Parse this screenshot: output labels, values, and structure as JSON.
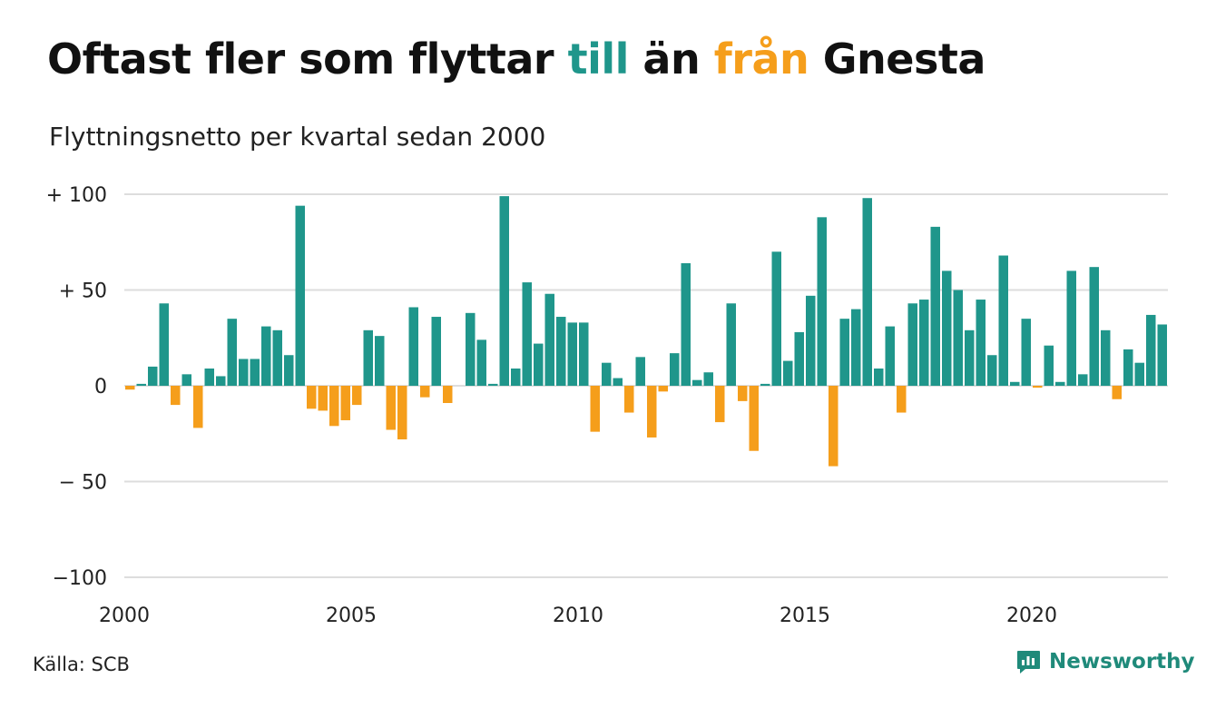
{
  "header": {
    "title_parts": [
      "Oftast fler som flyttar ",
      "till",
      " än ",
      "från",
      " Gnesta"
    ],
    "subtitle": "Flyttningsnetto per kvartal sedan 2000"
  },
  "footer": {
    "source": "Källa: SCB",
    "logo_text": "Newsworthy",
    "logo_icon": "bar-chart-logo-icon"
  },
  "colors": {
    "positive": "#1f968b",
    "negative": "#f59e1b",
    "grid": "#dddddd",
    "logo": "#1f8a7a"
  },
  "chart_data": {
    "type": "bar",
    "x_start": 2000,
    "periods_per_year": 4,
    "y_ticks": [
      100,
      50,
      0,
      -50,
      -100
    ],
    "y_tick_labels": [
      "+ 100",
      "+  50",
      "0",
      "− 50",
      "−100"
    ],
    "x_ticks": [
      2000,
      2005,
      2010,
      2015,
      2020
    ],
    "ylim": [
      -100,
      100
    ],
    "grid": true,
    "values": [
      -2,
      1,
      10,
      43,
      -10,
      6,
      -22,
      9,
      5,
      35,
      14,
      14,
      31,
      29,
      16,
      94,
      -12,
      -13,
      -21,
      -18,
      -10,
      29,
      26,
      -23,
      -28,
      41,
      -6,
      36,
      -9,
      0,
      38,
      24,
      1,
      99,
      9,
      54,
      22,
      48,
      36,
      33,
      33,
      -24,
      12,
      4,
      -14,
      15,
      -27,
      -3,
      17,
      64,
      3,
      7,
      -19,
      43,
      -8,
      -34,
      1,
      70,
      13,
      28,
      47,
      88,
      -42,
      35,
      40,
      98,
      9,
      31,
      -14,
      43,
      45,
      83,
      60,
      50,
      29,
      45,
      16,
      68,
      2,
      35,
      -1,
      21,
      2,
      60,
      6,
      62,
      29,
      -7,
      19,
      12,
      37,
      32
    ]
  }
}
